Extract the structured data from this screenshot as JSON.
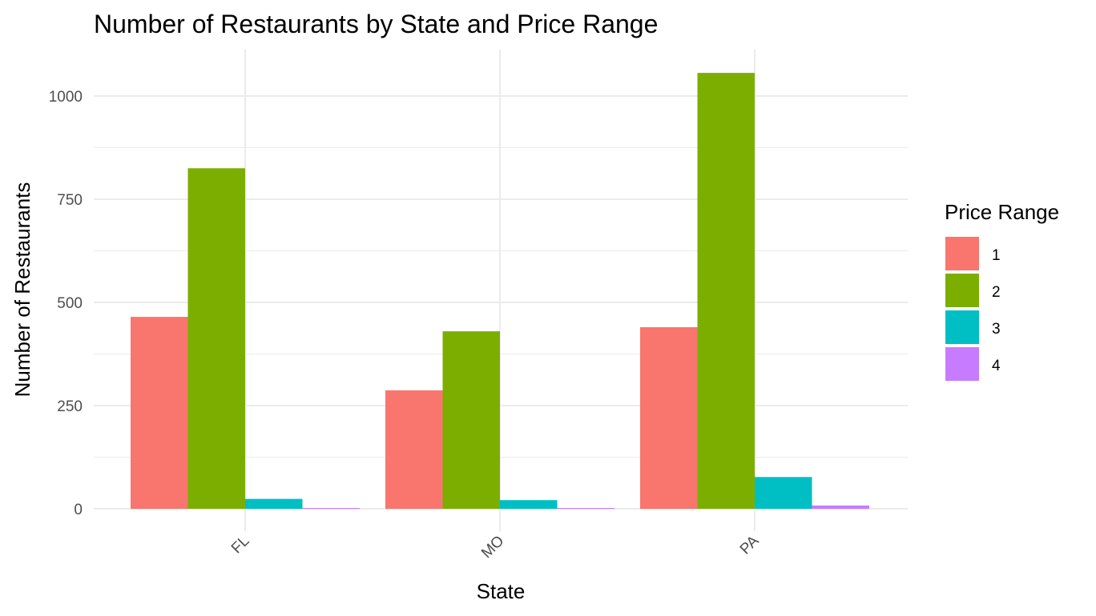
{
  "chart_data": {
    "type": "bar",
    "title": "Number of Restaurants by State and Price Range",
    "xlabel": "State",
    "ylabel": "Number of Restaurants",
    "categories": [
      "FL",
      "MO",
      "PA"
    ],
    "series": [
      {
        "name": "1",
        "color": "#F8766D",
        "values": [
          465,
          287,
          440
        ]
      },
      {
        "name": "2",
        "color": "#7CAE00",
        "values": [
          825,
          430,
          1056
        ]
      },
      {
        "name": "3",
        "color": "#00BFC4",
        "values": [
          24,
          21,
          77
        ]
      },
      {
        "name": "4",
        "color": "#C77CFF",
        "values": [
          2,
          2,
          8
        ]
      }
    ],
    "ylim": [
      0,
      1100
    ],
    "yticks": [
      0,
      250,
      500,
      750,
      1000
    ],
    "ytick_labels": [
      "0",
      "250",
      "500",
      "750",
      "1000"
    ],
    "grid": true,
    "legend": {
      "title": "Price Range",
      "position": "right"
    }
  }
}
